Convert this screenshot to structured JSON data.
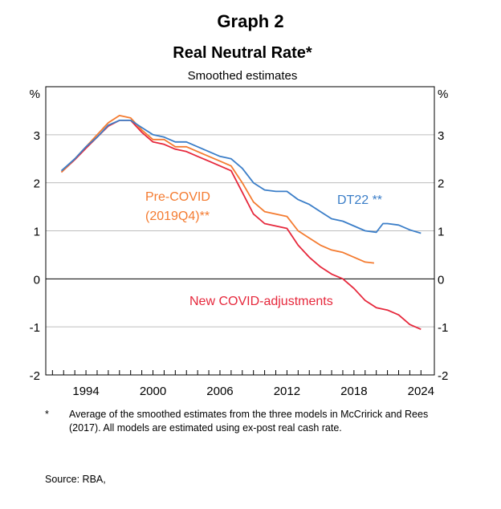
{
  "header": {
    "graph_label": "Graph 2",
    "title": "Real Neutral Rate*",
    "subtitle": "Smoothed estimates"
  },
  "chart_data": {
    "type": "line",
    "title": "Real Neutral Rate*",
    "subtitle": "Smoothed estimates",
    "ylabel": "%",
    "ylabel_right": "%",
    "ylim": [
      -2,
      4
    ],
    "xlim": [
      1990.4,
      2025.2
    ],
    "yticks": [
      -2,
      -1,
      0,
      1,
      2,
      3
    ],
    "xticks": [
      1994,
      2000,
      2006,
      2012,
      2018,
      2024
    ],
    "grid": true,
    "series": [
      {
        "name": "DT22 **",
        "color": "#3b7ec8",
        "x": [
          1991.8,
          1993,
          1994,
          1995,
          1996,
          1997,
          1998,
          1999,
          2000,
          2001,
          2002,
          2003,
          2004,
          2005,
          2006,
          2007,
          2008,
          2009,
          2010,
          2011,
          2012,
          2013,
          2014,
          2015,
          2016,
          2017,
          2018,
          2019,
          2020,
          2020.6,
          2021,
          2022,
          2023,
          2024
        ],
        "y": [
          2.25,
          2.5,
          2.75,
          2.95,
          3.2,
          3.3,
          3.3,
          3.15,
          3.0,
          2.95,
          2.85,
          2.85,
          2.75,
          2.65,
          2.55,
          2.5,
          2.3,
          2.0,
          1.85,
          1.82,
          1.82,
          1.65,
          1.55,
          1.4,
          1.25,
          1.2,
          1.1,
          1.0,
          0.97,
          1.15,
          1.15,
          1.12,
          1.02,
          0.95
        ]
      },
      {
        "name": "Pre-COVID (2019Q4)**",
        "color": "#f47b30",
        "x": [
          1991.8,
          1993,
          1994,
          1995,
          1996,
          1997,
          1998,
          1999,
          2000,
          2001,
          2002,
          2003,
          2004,
          2005,
          2006,
          2007,
          2008,
          2009,
          2010,
          2011,
          2012,
          2013,
          2014,
          2015,
          2016,
          2017,
          2018,
          2019,
          2019.8
        ],
        "y": [
          2.22,
          2.5,
          2.75,
          3.0,
          3.25,
          3.4,
          3.35,
          3.1,
          2.9,
          2.9,
          2.75,
          2.75,
          2.65,
          2.55,
          2.45,
          2.35,
          2.0,
          1.6,
          1.4,
          1.35,
          1.3,
          1.0,
          0.85,
          0.7,
          0.6,
          0.55,
          0.45,
          0.35,
          0.33
        ]
      },
      {
        "name": "New COVID-adjustments",
        "color": "#e6283c",
        "x": [
          1991.8,
          1993,
          1994,
          1995,
          1996,
          1997,
          1998,
          1999,
          2000,
          2001,
          2002,
          2003,
          2004,
          2005,
          2006,
          2007,
          2008,
          2009,
          2010,
          2011,
          2012,
          2013,
          2014,
          2015,
          2016,
          2017,
          2018,
          2019,
          2020,
          2021,
          2022,
          2023,
          2024
        ],
        "y": [
          2.22,
          2.48,
          2.72,
          2.95,
          3.18,
          3.3,
          3.3,
          3.05,
          2.85,
          2.8,
          2.7,
          2.65,
          2.55,
          2.45,
          2.35,
          2.25,
          1.8,
          1.35,
          1.15,
          1.1,
          1.05,
          0.7,
          0.45,
          0.25,
          0.1,
          0.0,
          -0.2,
          -0.45,
          -0.6,
          -0.65,
          -0.75,
          -0.95,
          -1.05
        ]
      }
    ],
    "labels": {
      "dt22": "DT22 **",
      "precovid_1": "Pre-COVID",
      "precovid_2": "(2019Q4)**",
      "newcovid": "New COVID-adjustments"
    }
  },
  "footnote": {
    "marker": "*",
    "text": "Average of the smoothed estimates from the three models in McCririck and Rees (2017). All models are estimated using ex-post real cash rate."
  },
  "source": "Source:   RBA,"
}
